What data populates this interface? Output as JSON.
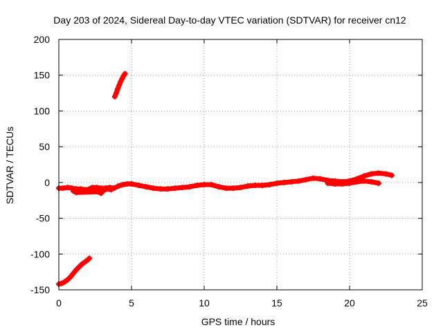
{
  "chart_data": {
    "type": "scatter",
    "title": "Day 203 of 2024, Sidereal Day-to-day VTEC variation (SDTVAR) for receiver cn12",
    "xlabel": "GPS time / hours",
    "ylabel": "SDTVAR / TECUs",
    "xlim": [
      0,
      25
    ],
    "ylim": [
      -150,
      200
    ],
    "xticks": [
      0,
      5,
      10,
      15,
      20,
      25
    ],
    "yticks": [
      -150,
      -100,
      -50,
      0,
      50,
      100,
      150,
      200
    ],
    "xtick_labels": [
      "0",
      "5",
      "10",
      "15",
      "20",
      "25"
    ],
    "ytick_labels": [
      "-150",
      "-100",
      "-50",
      "0",
      "50",
      "100",
      "150",
      "200"
    ],
    "grid": true,
    "marker": "+",
    "color": "#ff0000",
    "series": [
      {
        "name": "low-branch",
        "x": [
          0.0,
          0.2,
          0.4,
          0.6,
          0.8,
          1.0,
          1.2,
          1.4,
          1.6,
          1.8,
          2.0,
          2.1
        ],
        "y": [
          -142,
          -141,
          -139,
          -136,
          -132,
          -127,
          -122,
          -118,
          -114,
          -111,
          -108,
          -106
        ]
      },
      {
        "name": "high-branch",
        "x": [
          3.85,
          3.95,
          4.05,
          4.15,
          4.25,
          4.35,
          4.45,
          4.55
        ],
        "y": [
          120,
          125,
          131,
          136,
          141,
          145,
          149,
          152
        ]
      },
      {
        "name": "main",
        "x": [
          0.0,
          0.3,
          0.6,
          0.9,
          1.2,
          1.5,
          1.8,
          2.0,
          2.3,
          2.6,
          2.9,
          3.2,
          3.5,
          3.8,
          4.1,
          4.4,
          4.7,
          5.0,
          5.5,
          6.0,
          6.5,
          7.0,
          7.5,
          8.0,
          8.5,
          9.0,
          9.5,
          10.0,
          10.5,
          11.0,
          11.5,
          12.0,
          12.5,
          13.0,
          13.5,
          14.0,
          14.5,
          15.0,
          15.5,
          16.0,
          16.5,
          17.0,
          17.5,
          18.0,
          18.5,
          19.0,
          19.5,
          20.0,
          20.5,
          21.0,
          21.5,
          22.0,
          22.5,
          22.9
        ],
        "y": [
          -8,
          -8,
          -7,
          -8,
          -9,
          -9,
          -10,
          -10,
          -7,
          -7,
          -8,
          -8,
          -7,
          -8,
          -5,
          -3,
          -2,
          -2,
          -4,
          -6,
          -8,
          -9,
          -9,
          -8,
          -7,
          -6,
          -4,
          -3,
          -3,
          -6,
          -8,
          -8,
          -7,
          -5,
          -4,
          -4,
          -3,
          -1,
          0,
          1,
          2,
          4,
          6,
          5,
          3,
          2,
          1,
          2,
          5,
          9,
          12,
          13,
          12,
          10
        ]
      },
      {
        "name": "late-branch",
        "x": [
          18.5,
          19.0,
          19.5,
          20.0,
          20.5,
          21.0,
          21.5,
          22.0
        ],
        "y": [
          -1,
          -2,
          -2,
          -1,
          1,
          2,
          1,
          -1
        ]
      },
      {
        "name": "early-scatter",
        "x": [
          1.0,
          1.2,
          2.7,
          2.9,
          3.1,
          3.3,
          3.6
        ],
        "y": [
          -12,
          -14,
          -13,
          -15,
          -11,
          -9,
          -10
        ]
      }
    ]
  }
}
